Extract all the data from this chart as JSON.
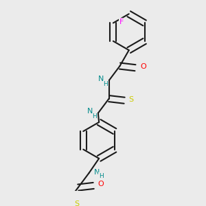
{
  "bg_color": "#ebebeb",
  "bond_color": "#1a1a1a",
  "N_color": "#008b8b",
  "O_color": "#ff0000",
  "S_color": "#cccc00",
  "F_color": "#ff00ff",
  "lw": 1.5,
  "dbo": 0.018,
  "xlim": [
    -0.1,
    1.0
  ],
  "ylim": [
    -0.05,
    1.05
  ]
}
